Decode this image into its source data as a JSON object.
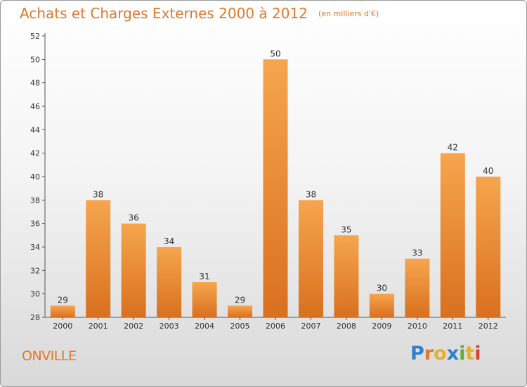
{
  "header": {
    "title": "Achats et Charges Externes 2000 à 2012",
    "unit": "(en milliers d'€)"
  },
  "footer": {
    "commune": "ONVILLE",
    "brand_letters": [
      "P",
      "r",
      "o",
      "x",
      "i",
      "t",
      "i"
    ],
    "brand_colors": [
      "#2f7fd0",
      "#e0782a",
      "#e8b02a",
      "#2f7fd0",
      "#5bb033",
      "#e8b02a",
      "#e0402a"
    ]
  },
  "colors": {
    "bar_light": "#f6a54e",
    "bar_dark": "#d9701e",
    "title": "#e0782a",
    "axis_text": "#333333"
  },
  "chart_data": {
    "type": "bar",
    "categories": [
      "2000",
      "2001",
      "2002",
      "2003",
      "2004",
      "2005",
      "2006",
      "2007",
      "2008",
      "2009",
      "2010",
      "2011",
      "2012"
    ],
    "values": [
      29,
      38,
      36,
      34,
      31,
      29,
      50,
      38,
      35,
      30,
      33,
      42,
      40
    ],
    "ylim": [
      28,
      52
    ],
    "yticks": [
      28,
      30,
      32,
      34,
      36,
      38,
      40,
      42,
      44,
      46,
      48,
      50,
      52
    ],
    "grid": false,
    "data_labels": true
  }
}
